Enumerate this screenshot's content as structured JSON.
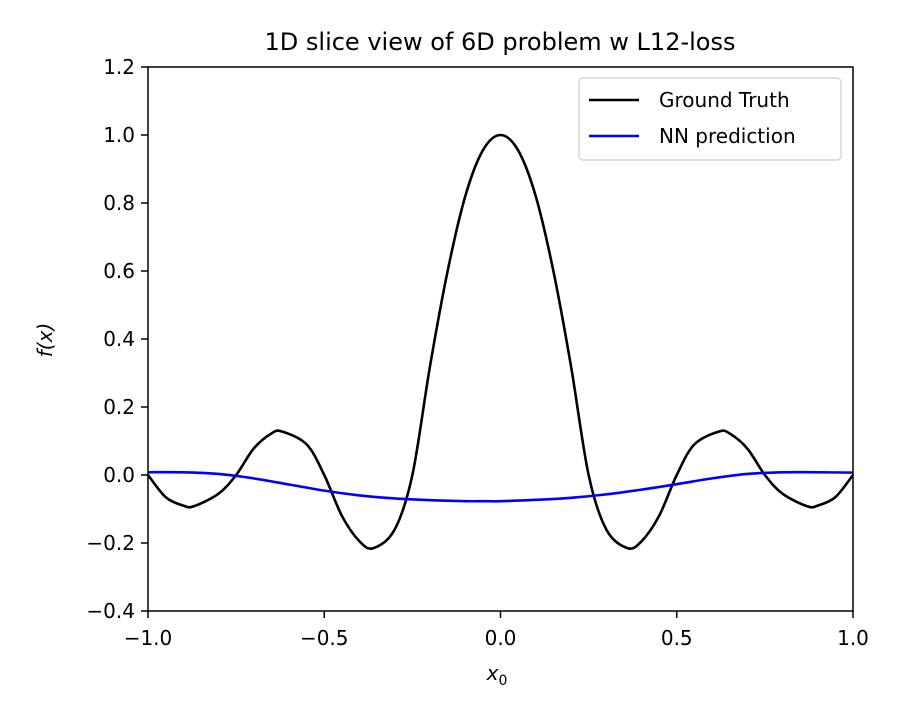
{
  "chart_data": {
    "type": "line",
    "title": "1D slice view of 6D problem w L12-loss",
    "xlabel": "x",
    "xlabel_sub": "0",
    "ylabel": "f(x)",
    "xlim": [
      -1.0,
      1.0
    ],
    "ylim": [
      -0.4,
      1.2
    ],
    "x_ticks": [
      -1.0,
      -0.5,
      0.0,
      0.5,
      1.0
    ],
    "x_tick_labels": [
      "−1.0",
      "−0.5",
      "0.0",
      "0.5",
      "1.0"
    ],
    "y_ticks": [
      -0.4,
      -0.2,
      0.0,
      0.2,
      0.4,
      0.6,
      0.8,
      1.0,
      1.2
    ],
    "y_tick_labels": [
      "−0.4",
      "−0.2",
      "0.0",
      "0.2",
      "0.4",
      "0.6",
      "0.8",
      "1.0",
      "1.2"
    ],
    "grid": false,
    "legend_position": "top-right",
    "series": [
      {
        "name": "Ground Truth",
        "color": "#000000",
        "x": [
          -1.0,
          -0.95,
          -0.9,
          -0.87,
          -0.8,
          -0.75,
          -0.7,
          -0.65,
          -0.62,
          -0.55,
          -0.5,
          -0.45,
          -0.4,
          -0.36,
          -0.3,
          -0.25,
          -0.2,
          -0.15,
          -0.1,
          -0.05,
          0.0,
          0.05,
          0.1,
          0.15,
          0.2,
          0.25,
          0.3,
          0.36,
          0.4,
          0.45,
          0.5,
          0.55,
          0.62,
          0.65,
          0.7,
          0.75,
          0.8,
          0.87,
          0.9,
          0.95,
          1.0
        ],
        "y": [
          0.0,
          -0.065,
          -0.09,
          -0.092,
          -0.055,
          0.0,
          0.078,
          0.122,
          0.128,
          0.09,
          0.0,
          -0.12,
          -0.195,
          -0.215,
          -0.16,
          0.0,
          0.32,
          0.6,
          0.82,
          0.955,
          1.0,
          0.955,
          0.82,
          0.6,
          0.32,
          0.0,
          -0.16,
          -0.215,
          -0.195,
          -0.12,
          0.0,
          0.09,
          0.128,
          0.122,
          0.078,
          0.0,
          -0.055,
          -0.092,
          -0.09,
          -0.065,
          0.0
        ]
      },
      {
        "name": "NN prediction",
        "color": "#0000ff",
        "x": [
          -1.0,
          -0.9,
          -0.8,
          -0.7,
          -0.6,
          -0.5,
          -0.4,
          -0.3,
          -0.2,
          -0.1,
          -0.05,
          0.0,
          0.1,
          0.2,
          0.3,
          0.4,
          0.5,
          0.6,
          0.7,
          0.8,
          0.9,
          1.0
        ],
        "y": [
          0.008,
          0.008,
          0.003,
          -0.01,
          -0.028,
          -0.046,
          -0.06,
          -0.069,
          -0.074,
          -0.077,
          -0.077,
          -0.077,
          -0.073,
          -0.067,
          -0.057,
          -0.043,
          -0.027,
          -0.01,
          0.003,
          0.008,
          0.008,
          0.007
        ]
      }
    ]
  }
}
